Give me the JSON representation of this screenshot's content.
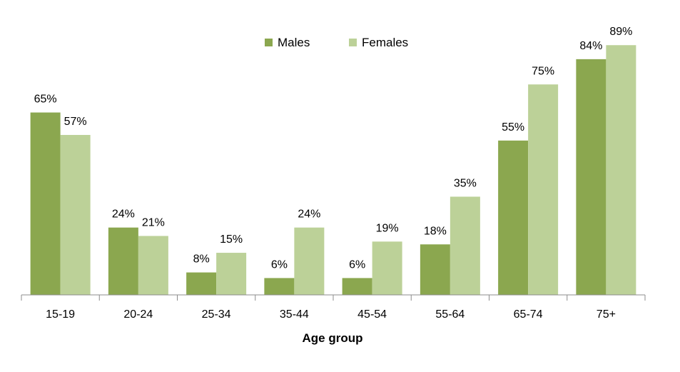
{
  "chart_data": {
    "type": "bar",
    "title": "",
    "xlabel": "Age group",
    "ylabel": "",
    "categories": [
      "15-19",
      "20-24",
      "25-34",
      "35-44",
      "45-54",
      "55-64",
      "65-74",
      "75+"
    ],
    "series": [
      {
        "name": "Males",
        "values": [
          65,
          24,
          8,
          6,
          6,
          18,
          55,
          84
        ],
        "labels": [
          "65%",
          "24%",
          "8%",
          "6%",
          "6%",
          "18%",
          "55%",
          "84%"
        ],
        "color": "#8ba74f"
      },
      {
        "name": "Females",
        "values": [
          57,
          21,
          15,
          24,
          19,
          35,
          75,
          89
        ],
        "labels": [
          "57%",
          "21%",
          "15%",
          "24%",
          "19%",
          "35%",
          "75%",
          "89%"
        ],
        "color": "#bcd198"
      }
    ],
    "ylim": [
      0,
      100
    ],
    "grid": false,
    "legend": "top-center",
    "value_unit": "%"
  }
}
